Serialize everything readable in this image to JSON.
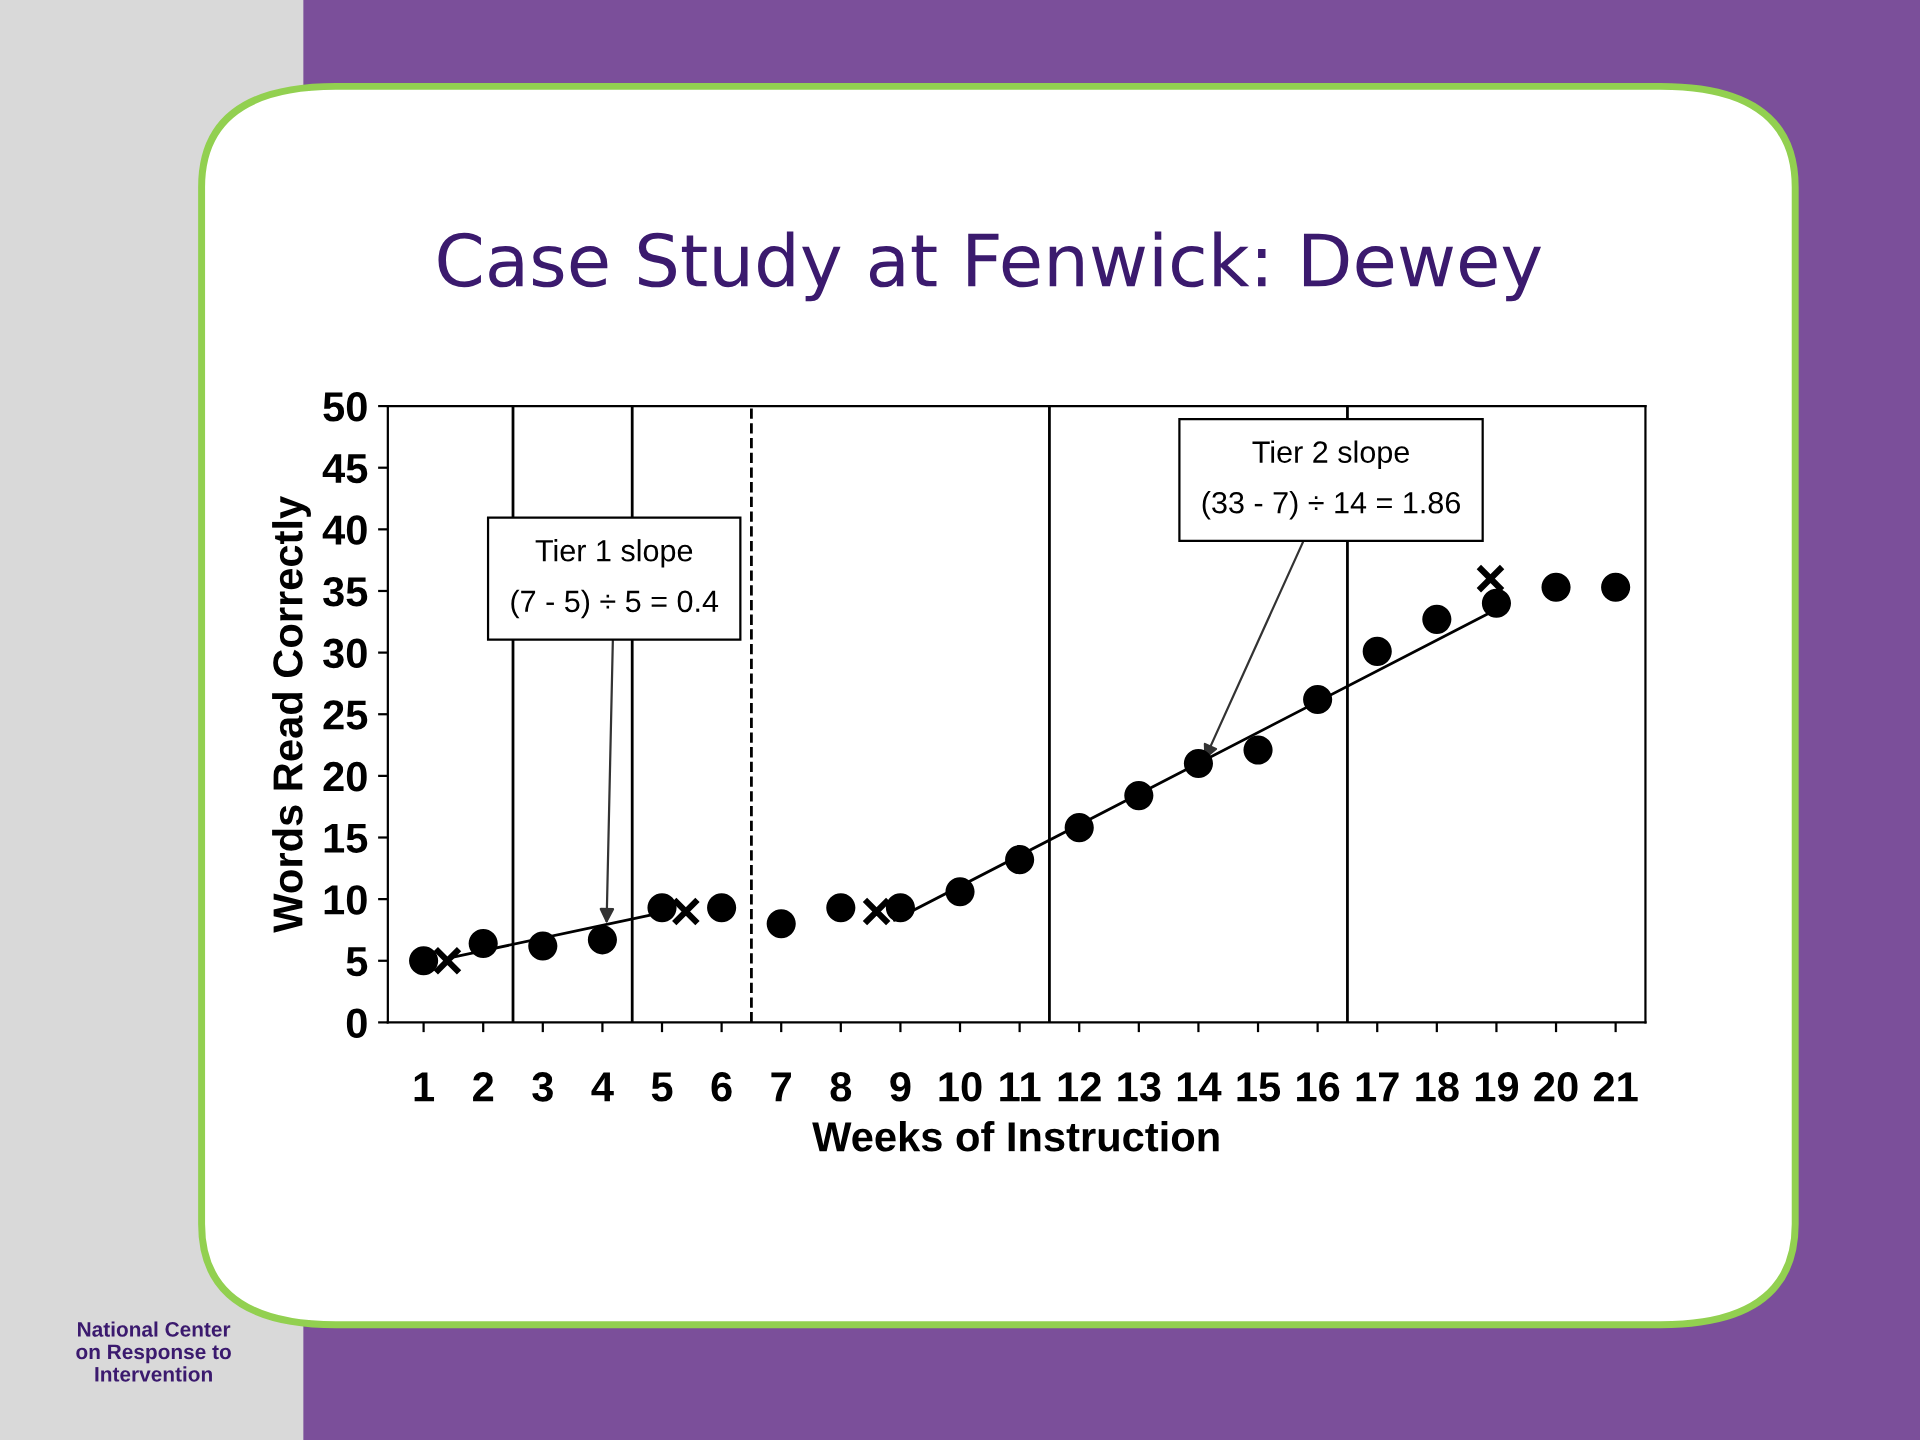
{
  "chart_data": {
    "type": "scatter",
    "title": "Case Study at Fenwick: Dewey",
    "xlabel": "Weeks of Instruction",
    "ylabel": "Words Read Correctly",
    "xlim": [
      0.4,
      21.5
    ],
    "xticks": [
      1,
      2,
      3,
      4,
      5,
      6,
      7,
      8,
      9,
      10,
      11,
      12,
      13,
      14,
      15,
      16,
      17,
      18,
      19,
      20,
      21
    ],
    "ylim": [
      0,
      50
    ],
    "yticks": [
      0,
      5,
      10,
      15,
      20,
      25,
      30,
      35,
      40,
      45,
      50
    ],
    "grid": false,
    "legend": false,
    "series": [
      {
        "marker": "circle",
        "color": "#000000",
        "x": [
          1,
          2,
          3,
          4,
          5,
          6,
          7,
          8,
          9,
          10,
          11,
          12,
          13,
          14,
          15,
          16,
          17,
          18,
          19,
          20,
          21
        ],
        "values": [
          5,
          6.4,
          6.2,
          6.7,
          9.3,
          9.3,
          8,
          9.3,
          9.3,
          10.6,
          13.2,
          15.8,
          18.4,
          21,
          22.1,
          26.2,
          30.1,
          32.7,
          34,
          35.3,
          35.3
        ]
      },
      {
        "marker": "cross",
        "color": "#000000",
        "x": [
          1.4,
          5.4,
          8.6,
          18.9
        ],
        "values": [
          5,
          9,
          9,
          36
        ]
      },
      {
        "type": "line",
        "marker": "none",
        "line_style": "solid",
        "color": "#000000",
        "x": [
          1.4,
          4.9
        ],
        "values": [
          5.2,
          8.8
        ]
      },
      {
        "type": "line",
        "marker": "none",
        "line_style": "solid",
        "color": "#000000",
        "x": [
          8.9,
          19
        ],
        "values": [
          8.3,
          33.5
        ]
      }
    ],
    "ref_lines": [
      {
        "axis": "x",
        "value": 2.5,
        "line_style": "solid"
      },
      {
        "axis": "x",
        "value": 4.5,
        "line_style": "solid"
      },
      {
        "axis": "x",
        "value": 6.5,
        "line_style": "dashed"
      },
      {
        "axis": "x",
        "value": 11.5,
        "line_style": "solid"
      },
      {
        "axis": "x",
        "value": 16.5,
        "line_style": "solid"
      }
    ],
    "annotations": [
      {
        "text": "Tier 1 slope\n(7 - 5) ÷ 5 = 0.4",
        "x": 4.07,
        "y": 8
      },
      {
        "text": "Tier 2 slope\n(33 - 7) ÷ 14 = 1.86",
        "x": 14.1,
        "y": 21.3
      },
      "National Center\non Response to\nIntervention"
    ]
  }
}
